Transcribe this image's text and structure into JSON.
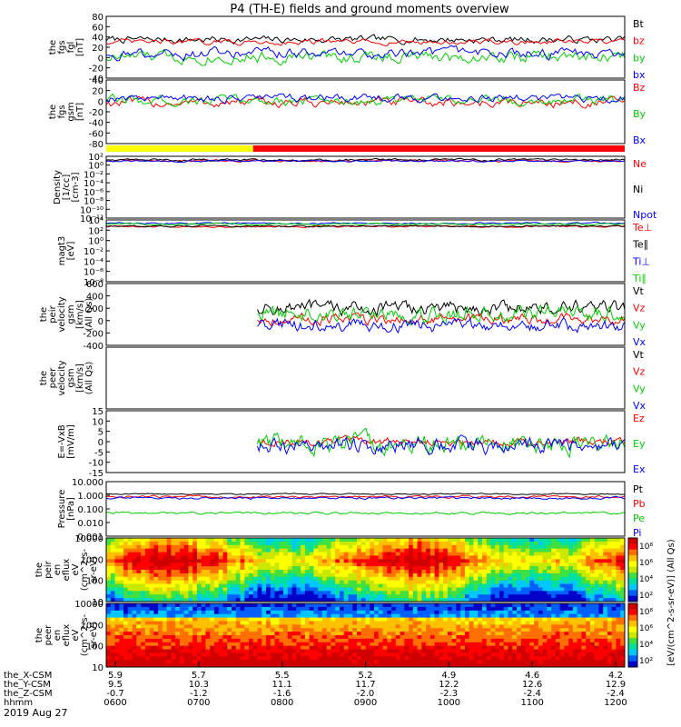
{
  "title": "P4 (TH-E) fields and ground moments overview",
  "date_label": "2019 Aug 27",
  "time_axis": {
    "row_labels": [
      "the_X-CSM",
      "the_Y-CSM",
      "the_Z-CSM",
      "hhmm"
    ],
    "ticks": [
      {
        "values": [
          "5.9",
          "9.5",
          "-0.7",
          "0600"
        ]
      },
      {
        "values": [
          "5.7",
          "10.3",
          "-1.2",
          "0700"
        ]
      },
      {
        "values": [
          "5.5",
          "11.1",
          "-1.6",
          "0800"
        ]
      },
      {
        "values": [
          "5.2",
          "11.7",
          "-2.0",
          "0900"
        ]
      },
      {
        "values": [
          "4.9",
          "12.2",
          "-2.3",
          "1000"
        ]
      },
      {
        "values": [
          "4.6",
          "12.6",
          "-2.4",
          "1100"
        ]
      },
      {
        "values": [
          "4.2",
          "12.9",
          "-2.4",
          "1200"
        ]
      }
    ]
  },
  "colors": {
    "black": "#000000",
    "red": "#ff0000",
    "green": "#00d000",
    "blue": "#0000ff",
    "yellow": "#ffff00"
  },
  "mode_bar": {
    "yellow_until_hhmm": "0742",
    "red_after_hhmm": "0742"
  },
  "chart_data": [
    {
      "id": "fgs-fgl",
      "type": "line",
      "ylabel": [
        "the",
        "fgs",
        "fgl",
        "[nT]"
      ],
      "ylim": [
        -40,
        85
      ],
      "yticks": [
        "80",
        "60",
        "40",
        "20",
        "0",
        "-20",
        "-40"
      ],
      "series": [
        {
          "name": "Bt",
          "color": "#000000",
          "mean": 38,
          "amp": 8
        },
        {
          "name": "bz",
          "color": "#ff0000",
          "mean": 33,
          "amp": 6
        },
        {
          "name": "by",
          "color": "#00d000",
          "mean": 3,
          "amp": 14
        },
        {
          "name": "bx",
          "color": "#0000ff",
          "mean": 10,
          "amp": 12
        }
      ]
    },
    {
      "id": "fgs-gsm",
      "type": "line",
      "ylabel": [
        "the",
        "fgs",
        "gsm",
        "[nT]"
      ],
      "ylim": [
        -90,
        50
      ],
      "yticks": [
        "40",
        "20",
        "0",
        "-20",
        "-40",
        "-60",
        "-80"
      ],
      "series": [
        {
          "name": "Bz",
          "color": "#ff0000",
          "mean": 0,
          "amp": 12
        },
        {
          "name": "By",
          "color": "#00d000",
          "mean": 5,
          "amp": 12
        },
        {
          "name": "Bx",
          "color": "#0000ff",
          "mean": 10,
          "amp": 10
        }
      ]
    },
    {
      "id": "density",
      "type": "line",
      "log": true,
      "ylabel": [
        "Density",
        "[1/cc]",
        "[cm-3]"
      ],
      "ylim": [
        -12,
        2
      ],
      "yticks": [
        "10²",
        "10⁰",
        "10⁻²",
        "10⁻⁴",
        "10⁻⁶",
        "10⁻⁸",
        "10⁻¹⁰",
        "10⁻¹²"
      ],
      "series": [
        {
          "name": "Ne",
          "color": "#ff0000",
          "mean": 1.0,
          "amp": 0.3
        },
        {
          "name": "Ni",
          "color": "#000000",
          "mean": 1.2,
          "amp": 0.3
        },
        {
          "name": "Npot",
          "color": "#0000ff",
          "mean": 0.9,
          "amp": 0.2
        }
      ]
    },
    {
      "id": "temperature",
      "type": "line",
      "log": true,
      "ylabel": [
        "magt3",
        "[eV]"
      ],
      "ylim": [
        -9,
        4
      ],
      "yticks": [
        "10⁴",
        "10²",
        "10⁰",
        "10⁻²",
        "10⁻⁴",
        "10⁻⁶",
        "10⁻⁸"
      ],
      "series": [
        {
          "name": "Te⊥",
          "color": "#ff0000",
          "mean": 2.6,
          "amp": 0.2
        },
        {
          "name": "Te∥",
          "color": "#000000",
          "mean": 2.7,
          "amp": 0.2
        },
        {
          "name": "Ti⊥",
          "color": "#0000ff",
          "mean": 3.3,
          "amp": 0.2
        },
        {
          "name": "Ti∥",
          "color": "#00d000",
          "mean": 3.1,
          "amp": 0.2
        }
      ]
    },
    {
      "id": "peir-velocity",
      "type": "line",
      "ylabel": [
        "the",
        "peir",
        "velocity",
        "gsm",
        "[km/s]",
        "(All Qs)"
      ],
      "ylim": [
        -400,
        600
      ],
      "yticks": [
        "600",
        "400",
        "200",
        "0",
        "-200",
        "-400"
      ],
      "start_hhmm": "0745",
      "series": [
        {
          "name": "Vt",
          "color": "#000000",
          "mean": 200,
          "amp": 120
        },
        {
          "name": "Vz",
          "color": "#ff0000",
          "mean": 20,
          "amp": 90
        },
        {
          "name": "Vy",
          "color": "#00d000",
          "mean": 120,
          "amp": 140
        },
        {
          "name": "Vx",
          "color": "#0000ff",
          "mean": -80,
          "amp": 110
        }
      ]
    },
    {
      "id": "peer-velocity",
      "type": "line",
      "ylabel": [
        "the",
        "peer",
        "velocity",
        "gsm",
        "[km/s]",
        "(All Qs)"
      ],
      "ylim": [
        -400,
        600
      ],
      "yticks": [],
      "series": [
        {
          "name": "Vt",
          "color": "#000000"
        },
        {
          "name": "Vz",
          "color": "#ff0000"
        },
        {
          "name": "Vy",
          "color": "#00d000"
        },
        {
          "name": "Vx",
          "color": "#0000ff"
        }
      ]
    },
    {
      "id": "efield",
      "type": "line",
      "ylabel": [
        "E=-VxB",
        "[mV/m]"
      ],
      "ylim": [
        -15,
        15
      ],
      "yticks": [
        "15",
        "10",
        "5",
        "0",
        "-5",
        "-10",
        "-15"
      ],
      "start_hhmm": "0745",
      "series": [
        {
          "name": "Ez",
          "color": "#ff0000",
          "mean": 0,
          "amp": 2
        },
        {
          "name": "Ey",
          "color": "#00d000",
          "mean": -1,
          "amp": 5
        },
        {
          "name": "Ex",
          "color": "#0000ff",
          "mean": -2,
          "amp": 4
        }
      ]
    },
    {
      "id": "pressure",
      "type": "line",
      "log": true,
      "ylabel": [
        "Pressure",
        "[nPa]"
      ],
      "ylim": [
        -3,
        1
      ],
      "yticks": [
        "10.000",
        "1.000",
        "0.100",
        "0.010",
        "0.001"
      ],
      "series": [
        {
          "name": "Pt",
          "color": "#000000",
          "mean": 0.1,
          "amp": 0.05
        },
        {
          "name": "Pb",
          "color": "#ff0000",
          "mean": -0.1,
          "amp": 0.1
        },
        {
          "name": "Pe",
          "color": "#00d000",
          "mean": -1.3,
          "amp": 0.1
        },
        {
          "name": "Pi",
          "color": "#0000ff",
          "mean": -0.2,
          "amp": 0.1
        }
      ]
    },
    {
      "id": "peir-eflux",
      "type": "heatmap",
      "ylabel": [
        "the",
        "peir",
        "en",
        "eflux",
        "eV",
        "(cm^2-s-",
        "sr-eV)"
      ],
      "yticks": [
        "10000",
        "1000",
        "100",
        "10"
      ],
      "colorbar": {
        "label": "[eV/(cm^2-s-sr-eV)] (All Qs)",
        "ticks": [
          "10⁸",
          "10⁶",
          "10⁴",
          "10²"
        ]
      }
    },
    {
      "id": "peer-eflux",
      "type": "heatmap",
      "ylabel": [
        "the",
        "peer",
        "en",
        "eflux",
        "eV",
        "(cm^2-s-",
        "sr-eV)"
      ],
      "yticks": [
        "10000",
        "1000",
        "100",
        "10"
      ],
      "colorbar": {
        "label": "[eV/(cm^2-s-sr-eV)] (All Qs)",
        "ticks": [
          "10⁸",
          "10⁶",
          "10⁴",
          "10²"
        ]
      }
    }
  ]
}
